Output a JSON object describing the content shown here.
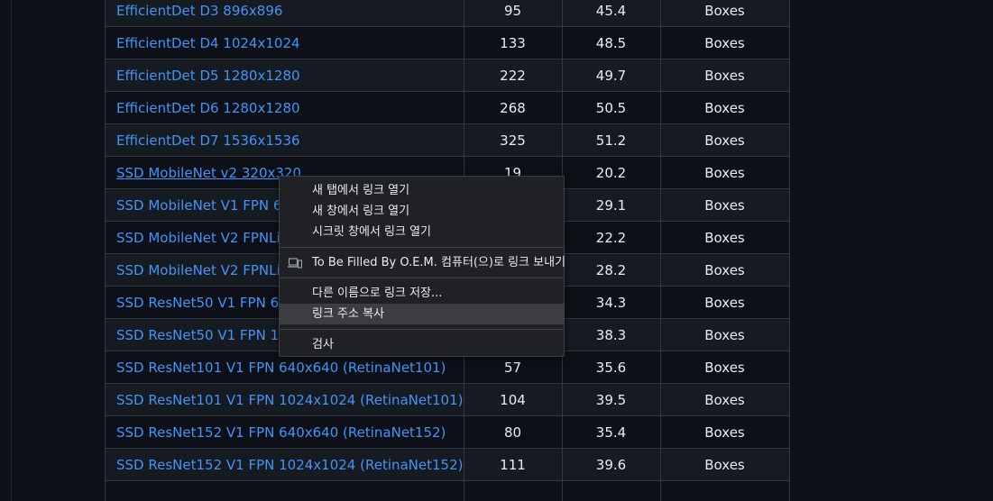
{
  "table": {
    "rows": [
      {
        "name": "EfficientDet D3 896x896",
        "speed": "95",
        "coco_map": "45.4",
        "outputs": "Boxes"
      },
      {
        "name": "EfficientDet D4 1024x1024",
        "speed": "133",
        "coco_map": "48.5",
        "outputs": "Boxes"
      },
      {
        "name": "EfficientDet D5 1280x1280",
        "speed": "222",
        "coco_map": "49.7",
        "outputs": "Boxes"
      },
      {
        "name": "EfficientDet D6 1280x1280",
        "speed": "268",
        "coco_map": "50.5",
        "outputs": "Boxes"
      },
      {
        "name": "EfficientDet D7 1536x1536",
        "speed": "325",
        "coco_map": "51.2",
        "outputs": "Boxes"
      },
      {
        "name": "SSD MobileNet v2 320x320",
        "speed": "19",
        "coco_map": "20.2",
        "outputs": "Boxes"
      },
      {
        "name": "SSD MobileNet V1 FPN 640x640",
        "speed": "",
        "coco_map": "29.1",
        "outputs": "Boxes"
      },
      {
        "name": "SSD MobileNet V2 FPNLite 320x320",
        "speed": "",
        "coco_map": "22.2",
        "outputs": "Boxes"
      },
      {
        "name": "SSD MobileNet V2 FPNLite 640x640",
        "speed": "",
        "coco_map": "28.2",
        "outputs": "Boxes"
      },
      {
        "name": "SSD ResNet50 V1 FPN 640x640 (RetinaNet50)",
        "speed": "",
        "coco_map": "34.3",
        "outputs": "Boxes"
      },
      {
        "name": "SSD ResNet50 V1 FPN 1024x1024 (RetinaNet50)",
        "speed": "",
        "coco_map": "38.3",
        "outputs": "Boxes"
      },
      {
        "name": "SSD ResNet101 V1 FPN 640x640 (RetinaNet101)",
        "speed": "57",
        "coco_map": "35.6",
        "outputs": "Boxes"
      },
      {
        "name": "SSD ResNet101 V1 FPN 1024x1024 (RetinaNet101)",
        "speed": "104",
        "coco_map": "39.5",
        "outputs": "Boxes"
      },
      {
        "name": "SSD ResNet152 V1 FPN 640x640 (RetinaNet152)",
        "speed": "80",
        "coco_map": "35.4",
        "outputs": "Boxes"
      },
      {
        "name": "SSD ResNet152 V1 FPN 1024x1024 (RetinaNet152)",
        "speed": "111",
        "coco_map": "39.6",
        "outputs": "Boxes"
      },
      {
        "name": "",
        "speed": "",
        "coco_map": "",
        "outputs": ""
      }
    ]
  },
  "context_menu": {
    "open_new_tab": "새 탭에서 링크 열기",
    "open_new_window": "새 창에서 링크 열기",
    "open_incognito": "시크릿 창에서 링크 열기",
    "send_to_device": "To Be Filled By O.E.M. 컴퓨터(으)로 링크 보내기",
    "save_link_as": "다른 이름으로 링크 저장...",
    "copy_link_address": "링크 주소 복사",
    "inspect": "검사",
    "device_icon": "laptop-phone-icon"
  }
}
